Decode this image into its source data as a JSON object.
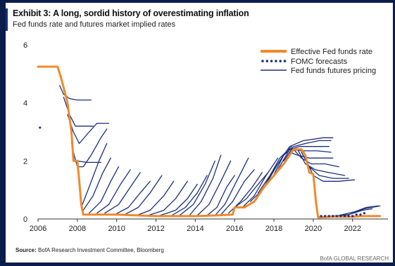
{
  "header": {
    "title": "Exhibit 3: A long, sordid history of overestimating inflation",
    "subtitle": "Fed funds rate and futures market implied rates"
  },
  "footer": {
    "source_label": "Source:",
    "source_text": "BofA Research Investment Committee, Bloomberg",
    "brand": "BofA GLOBAL RESEARCH"
  },
  "colors": {
    "effective_rate": "#f0892a",
    "fomc": "#1b2f7c",
    "futures": "#1b2f7c",
    "axis": "#333333",
    "background": "#0b1d4a"
  },
  "chart_data": {
    "type": "line",
    "title": "Exhibit 3: A long, sordid history of overestimating inflation",
    "subtitle": "Fed funds rate and futures market implied rates",
    "xlabel": "",
    "ylabel": "",
    "xlim": [
      2006,
      2023.8
    ],
    "ylim": [
      0,
      6
    ],
    "xticks": [
      2006,
      2008,
      2010,
      2012,
      2014,
      2016,
      2018,
      2020,
      2022
    ],
    "yticks": [
      0,
      2,
      4,
      6
    ],
    "grid": false,
    "legend_position": "top-right",
    "legend": [
      "Effective Fed funds rate",
      "FOMC forecasts",
      "Fed funds futures pricing"
    ],
    "series": [
      {
        "name": "Effective Fed funds rate",
        "style": "solid-thick",
        "points": [
          [
            2006.0,
            5.25
          ],
          [
            2006.4,
            5.25
          ],
          [
            2006.8,
            5.25
          ],
          [
            2007.0,
            5.25
          ],
          [
            2007.2,
            4.8
          ],
          [
            2007.5,
            4.0
          ],
          [
            2007.7,
            3.0
          ],
          [
            2007.8,
            2.0
          ],
          [
            2008.0,
            2.0
          ],
          [
            2008.1,
            1.3
          ],
          [
            2008.2,
            0.5
          ],
          [
            2008.3,
            0.15
          ],
          [
            2009.0,
            0.15
          ],
          [
            2010.0,
            0.15
          ],
          [
            2012.0,
            0.1
          ],
          [
            2014.0,
            0.1
          ],
          [
            2015.0,
            0.12
          ],
          [
            2015.9,
            0.15
          ],
          [
            2016.0,
            0.4
          ],
          [
            2016.5,
            0.4
          ],
          [
            2017.0,
            0.6
          ],
          [
            2017.5,
            1.1
          ],
          [
            2018.0,
            1.5
          ],
          [
            2018.5,
            1.9
          ],
          [
            2018.9,
            2.3
          ],
          [
            2019.0,
            2.4
          ],
          [
            2019.4,
            2.4
          ],
          [
            2019.6,
            2.2
          ],
          [
            2019.8,
            1.6
          ],
          [
            2020.0,
            1.55
          ],
          [
            2020.15,
            0.5
          ],
          [
            2020.25,
            0.05
          ],
          [
            2021.0,
            0.08
          ],
          [
            2022.0,
            0.08
          ],
          [
            2022.5,
            0.1
          ],
          [
            2023.4,
            0.1
          ]
        ]
      },
      {
        "name": "FOMC forecasts",
        "style": "dotted",
        "points": [
          [
            2006.1,
            3.15
          ],
          [
            2020.4,
            0.1
          ],
          [
            2020.6,
            0.1
          ],
          [
            2020.8,
            0.1
          ],
          [
            2021.0,
            0.1
          ],
          [
            2021.2,
            0.1
          ],
          [
            2021.4,
            0.1
          ],
          [
            2021.6,
            0.1
          ],
          [
            2021.8,
            0.1
          ],
          [
            2022.0,
            0.1
          ],
          [
            2022.2,
            0.15
          ],
          [
            2022.4,
            0.15
          ],
          [
            2022.6,
            0.2
          ]
        ]
      },
      {
        "name": "Fed funds futures pricing",
        "style": "solid-thin",
        "paths": [
          [
            [
              2007.1,
              4.6
            ],
            [
              2007.3,
              4.3
            ],
            [
              2007.6,
              4.15
            ],
            [
              2008.0,
              4.1
            ],
            [
              2008.7,
              4.1
            ]
          ],
          [
            [
              2007.3,
              4.2
            ],
            [
              2007.6,
              3.6
            ],
            [
              2007.9,
              3.2
            ],
            [
              2008.3,
              3.2
            ],
            [
              2008.8,
              3.2
            ]
          ],
          [
            [
              2007.5,
              3.6
            ],
            [
              2007.8,
              3.0
            ],
            [
              2008.1,
              2.6
            ],
            [
              2008.6,
              3.0
            ],
            [
              2009.0,
              3.3
            ],
            [
              2009.6,
              3.3
            ]
          ],
          [
            [
              2007.8,
              2.3
            ],
            [
              2008.0,
              1.8
            ],
            [
              2008.3,
              1.8
            ],
            [
              2008.7,
              2.2
            ],
            [
              2009.2,
              2.8
            ],
            [
              2009.5,
              3.1
            ]
          ],
          [
            [
              2008.0,
              2.0
            ],
            [
              2008.5,
              1.95
            ],
            [
              2009.2,
              1.95
            ]
          ],
          [
            [
              2008.2,
              0.4
            ],
            [
              2008.6,
              1.1
            ],
            [
              2009.1,
              2.0
            ],
            [
              2009.5,
              2.6
            ]
          ],
          [
            [
              2008.3,
              0.3
            ],
            [
              2008.8,
              0.8
            ],
            [
              2009.3,
              1.6
            ],
            [
              2009.7,
              2.1
            ]
          ],
          [
            [
              2008.6,
              0.2
            ],
            [
              2009.2,
              0.6
            ],
            [
              2009.7,
              1.3
            ],
            [
              2010.1,
              1.8
            ]
          ],
          [
            [
              2009.0,
              0.2
            ],
            [
              2009.6,
              0.5
            ],
            [
              2010.2,
              1.2
            ],
            [
              2010.7,
              1.7
            ]
          ],
          [
            [
              2009.4,
              0.2
            ],
            [
              2010.1,
              0.5
            ],
            [
              2010.7,
              1.1
            ],
            [
              2011.2,
              1.6
            ]
          ],
          [
            [
              2009.9,
              0.15
            ],
            [
              2010.6,
              0.4
            ],
            [
              2011.2,
              0.9
            ],
            [
              2011.7,
              1.3
            ]
          ],
          [
            [
              2010.4,
              0.15
            ],
            [
              2011.1,
              0.4
            ],
            [
              2011.7,
              0.9
            ],
            [
              2012.3,
              1.5
            ]
          ],
          [
            [
              2011.0,
              0.12
            ],
            [
              2011.7,
              0.3
            ],
            [
              2012.4,
              0.8
            ],
            [
              2012.9,
              1.3
            ]
          ],
          [
            [
              2011.6,
              0.12
            ],
            [
              2012.4,
              0.3
            ],
            [
              2013.0,
              0.7
            ],
            [
              2013.6,
              1.3
            ]
          ],
          [
            [
              2012.2,
              0.12
            ],
            [
              2013.0,
              0.3
            ],
            [
              2013.6,
              0.7
            ],
            [
              2014.1,
              1.2
            ]
          ],
          [
            [
              2012.8,
              0.12
            ],
            [
              2013.5,
              0.4
            ],
            [
              2014.1,
              0.9
            ],
            [
              2014.6,
              1.5
            ]
          ],
          [
            [
              2013.2,
              0.12
            ],
            [
              2013.9,
              0.5
            ],
            [
              2014.5,
              1.2
            ],
            [
              2015.0,
              2.0
            ]
          ],
          [
            [
              2013.7,
              0.12
            ],
            [
              2014.3,
              0.6
            ],
            [
              2014.9,
              1.4
            ],
            [
              2015.3,
              2.2
            ]
          ],
          [
            [
              2014.1,
              0.12
            ],
            [
              2014.7,
              0.5
            ],
            [
              2015.3,
              1.3
            ],
            [
              2015.8,
              2.0
            ]
          ],
          [
            [
              2014.6,
              0.12
            ],
            [
              2015.1,
              0.4
            ],
            [
              2015.6,
              1.1
            ],
            [
              2016.0,
              1.5
            ]
          ],
          [
            [
              2015.0,
              0.12
            ],
            [
              2015.5,
              0.5
            ],
            [
              2016.1,
              1.3
            ],
            [
              2016.7,
              2.1
            ]
          ],
          [
            [
              2015.3,
              0.15
            ],
            [
              2015.9,
              0.6
            ],
            [
              2016.5,
              1.3
            ],
            [
              2017.0,
              1.7
            ]
          ],
          [
            [
              2015.7,
              0.2
            ],
            [
              2016.3,
              0.6
            ],
            [
              2016.9,
              1.1
            ],
            [
              2017.4,
              1.6
            ]
          ],
          [
            [
              2016.0,
              0.4
            ],
            [
              2016.6,
              0.7
            ],
            [
              2017.2,
              1.2
            ],
            [
              2017.7,
              1.6
            ]
          ],
          [
            [
              2016.4,
              0.4
            ],
            [
              2017.0,
              0.8
            ],
            [
              2017.6,
              1.5
            ],
            [
              2018.2,
              2.1
            ]
          ],
          [
            [
              2016.8,
              0.6
            ],
            [
              2017.4,
              1.0
            ],
            [
              2018.0,
              1.7
            ],
            [
              2018.6,
              2.3
            ]
          ],
          [
            [
              2017.2,
              0.9
            ],
            [
              2017.8,
              1.5
            ],
            [
              2018.3,
              2.1
            ],
            [
              2018.9,
              2.5
            ]
          ],
          [
            [
              2017.6,
              1.2
            ],
            [
              2018.2,
              1.9
            ],
            [
              2018.8,
              2.5
            ],
            [
              2019.5,
              2.7
            ],
            [
              2020.5,
              2.8
            ],
            [
              2021.0,
              2.8
            ]
          ],
          [
            [
              2017.9,
              1.4
            ],
            [
              2018.5,
              2.2
            ],
            [
              2019.0,
              2.5
            ],
            [
              2019.6,
              2.6
            ],
            [
              2020.3,
              2.7
            ],
            [
              2020.9,
              2.7
            ]
          ],
          [
            [
              2018.2,
              1.7
            ],
            [
              2018.8,
              2.4
            ],
            [
              2019.3,
              2.5
            ],
            [
              2020.0,
              2.5
            ],
            [
              2020.8,
              2.5
            ]
          ],
          [
            [
              2018.5,
              2.0
            ],
            [
              2018.9,
              2.4
            ],
            [
              2019.4,
              2.35
            ],
            [
              2020.2,
              2.35
            ],
            [
              2020.9,
              2.3
            ]
          ],
          [
            [
              2018.8,
              2.3
            ],
            [
              2019.2,
              2.2
            ],
            [
              2019.8,
              2.1
            ],
            [
              2020.4,
              2.1
            ],
            [
              2021.0,
              2.1
            ]
          ],
          [
            [
              2019.0,
              2.4
            ],
            [
              2019.4,
              2.1
            ],
            [
              2019.9,
              1.9
            ],
            [
              2020.6,
              1.9
            ],
            [
              2021.3,
              1.8
            ]
          ],
          [
            [
              2019.2,
              2.4
            ],
            [
              2019.6,
              1.9
            ],
            [
              2020.1,
              1.7
            ],
            [
              2020.8,
              1.6
            ],
            [
              2021.6,
              1.5
            ]
          ],
          [
            [
              2019.4,
              2.3
            ],
            [
              2019.8,
              1.8
            ],
            [
              2020.3,
              1.5
            ],
            [
              2021.0,
              1.4
            ],
            [
              2021.8,
              1.4
            ]
          ],
          [
            [
              2019.6,
              2.1
            ],
            [
              2020.0,
              1.5
            ],
            [
              2020.5,
              1.3
            ],
            [
              2021.3,
              1.3
            ],
            [
              2022.1,
              1.35
            ]
          ],
          [
            [
              2020.3,
              0.08
            ],
            [
              2021.0,
              0.1
            ],
            [
              2021.8,
              0.15
            ],
            [
              2022.5,
              0.3
            ],
            [
              2023.0,
              0.35
            ]
          ],
          [
            [
              2020.6,
              0.08
            ],
            [
              2021.3,
              0.12
            ],
            [
              2022.1,
              0.25
            ],
            [
              2022.7,
              0.4
            ],
            [
              2023.3,
              0.45
            ]
          ],
          [
            [
              2021.0,
              0.08
            ],
            [
              2021.8,
              0.15
            ],
            [
              2022.6,
              0.35
            ],
            [
              2023.4,
              0.45
            ]
          ]
        ]
      }
    ]
  }
}
